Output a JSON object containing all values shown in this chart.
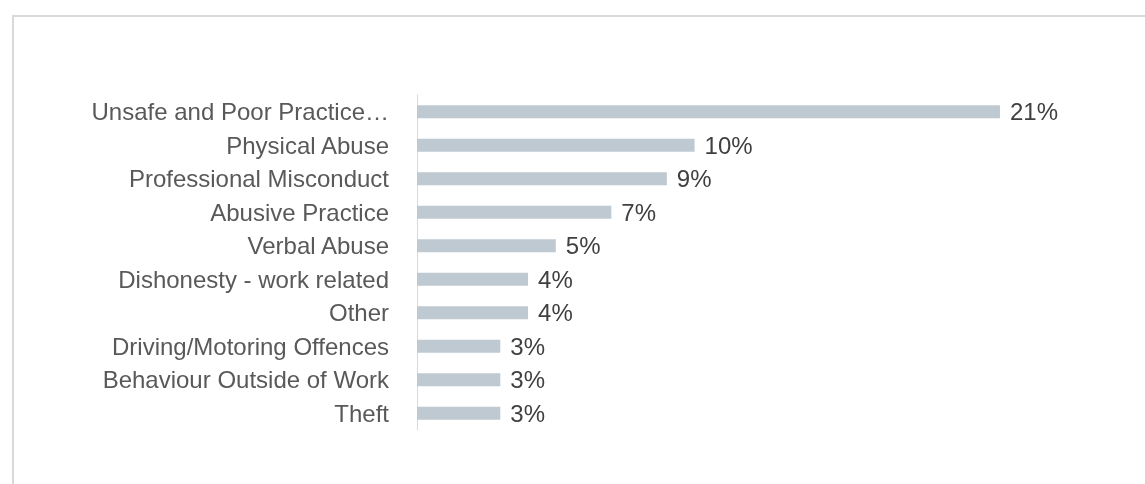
{
  "chart_data": {
    "type": "bar",
    "orientation": "horizontal",
    "categories": [
      "Unsafe and Poor Practice…",
      "Physical Abuse",
      "Professional Misconduct",
      "Abusive Practice",
      "Verbal Abuse",
      "Dishonesty - work related",
      "Other",
      "Driving/Motoring Offences",
      "Behaviour Outside of Work",
      "Theft"
    ],
    "values": [
      21,
      10,
      9,
      7,
      5,
      4,
      4,
      3,
      3,
      3
    ],
    "value_labels": [
      "21%",
      "10%",
      "9%",
      "7%",
      "5%",
      "4%",
      "4%",
      "3%",
      "3%",
      "3%"
    ],
    "color": "#bfc9d1"
  }
}
